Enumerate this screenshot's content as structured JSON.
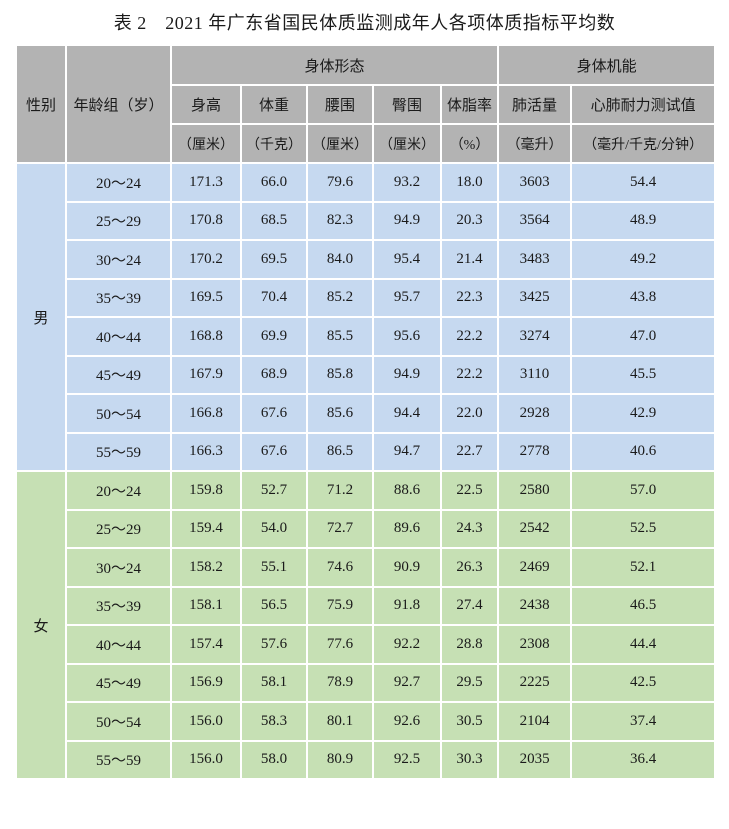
{
  "title": "表 2　2021 年广东省国民体质监测成年人各项体质指标平均数",
  "colors": {
    "header_bg": "#b3b3b3",
    "male_bg": "#c6d9f0",
    "female_bg": "#c6e0b4",
    "text": "#1a1a1a",
    "grid": "#ffffff"
  },
  "table": {
    "header": {
      "gender": "性别",
      "age_group": "年龄组（岁）",
      "group_morphology": "身体形态",
      "group_function": "身体机能",
      "columns": [
        {
          "label": "身高",
          "unit": "（厘米）"
        },
        {
          "label": "体重",
          "unit": "（千克）"
        },
        {
          "label": "腰围",
          "unit": "（厘米）"
        },
        {
          "label": "臀围",
          "unit": "（厘米）"
        },
        {
          "label": "体脂率",
          "unit": "（%）"
        },
        {
          "label": "肺活量",
          "unit": "（毫升）"
        },
        {
          "label": "心肺耐力测试值",
          "unit": "（毫升/千克/分钟）"
        }
      ]
    },
    "sections": [
      {
        "gender": "男",
        "color_key": "male_bg",
        "rows": [
          {
            "age": "20～24",
            "values": [
              "171.3",
              "66.0",
              "79.6",
              "93.2",
              "18.0",
              "3603",
              "54.4"
            ]
          },
          {
            "age": "25～29",
            "values": [
              "170.8",
              "68.5",
              "82.3",
              "94.9",
              "20.3",
              "3564",
              "48.9"
            ]
          },
          {
            "age": "30～24",
            "values": [
              "170.2",
              "69.5",
              "84.0",
              "95.4",
              "21.4",
              "3483",
              "49.2"
            ]
          },
          {
            "age": "35～39",
            "values": [
              "169.5",
              "70.4",
              "85.2",
              "95.7",
              "22.3",
              "3425",
              "43.8"
            ]
          },
          {
            "age": "40～44",
            "values": [
              "168.8",
              "69.9",
              "85.5",
              "95.6",
              "22.2",
              "3274",
              "47.0"
            ]
          },
          {
            "age": "45～49",
            "values": [
              "167.9",
              "68.9",
              "85.8",
              "94.9",
              "22.2",
              "3110",
              "45.5"
            ]
          },
          {
            "age": "50～54",
            "values": [
              "166.8",
              "67.6",
              "85.6",
              "94.4",
              "22.0",
              "2928",
              "42.9"
            ]
          },
          {
            "age": "55～59",
            "values": [
              "166.3",
              "67.6",
              "86.5",
              "94.7",
              "22.7",
              "2778",
              "40.6"
            ]
          }
        ]
      },
      {
        "gender": "女",
        "color_key": "female_bg",
        "rows": [
          {
            "age": "20～24",
            "values": [
              "159.8",
              "52.7",
              "71.2",
              "88.6",
              "22.5",
              "2580",
              "57.0"
            ]
          },
          {
            "age": "25～29",
            "values": [
              "159.4",
              "54.0",
              "72.7",
              "89.6",
              "24.3",
              "2542",
              "52.5"
            ]
          },
          {
            "age": "30～24",
            "values": [
              "158.2",
              "55.1",
              "74.6",
              "90.9",
              "26.3",
              "2469",
              "52.1"
            ]
          },
          {
            "age": "35～39",
            "values": [
              "158.1",
              "56.5",
              "75.9",
              "91.8",
              "27.4",
              "2438",
              "46.5"
            ]
          },
          {
            "age": "40～44",
            "values": [
              "157.4",
              "57.6",
              "77.6",
              "92.2",
              "28.8",
              "2308",
              "44.4"
            ]
          },
          {
            "age": "45～49",
            "values": [
              "156.9",
              "58.1",
              "78.9",
              "92.7",
              "29.5",
              "2225",
              "42.5"
            ]
          },
          {
            "age": "50～54",
            "values": [
              "156.0",
              "58.3",
              "80.1",
              "92.6",
              "30.5",
              "2104",
              "37.4"
            ]
          },
          {
            "age": "55～59",
            "values": [
              "156.0",
              "58.0",
              "80.9",
              "92.5",
              "30.3",
              "2035",
              "36.4"
            ]
          }
        ]
      }
    ]
  }
}
